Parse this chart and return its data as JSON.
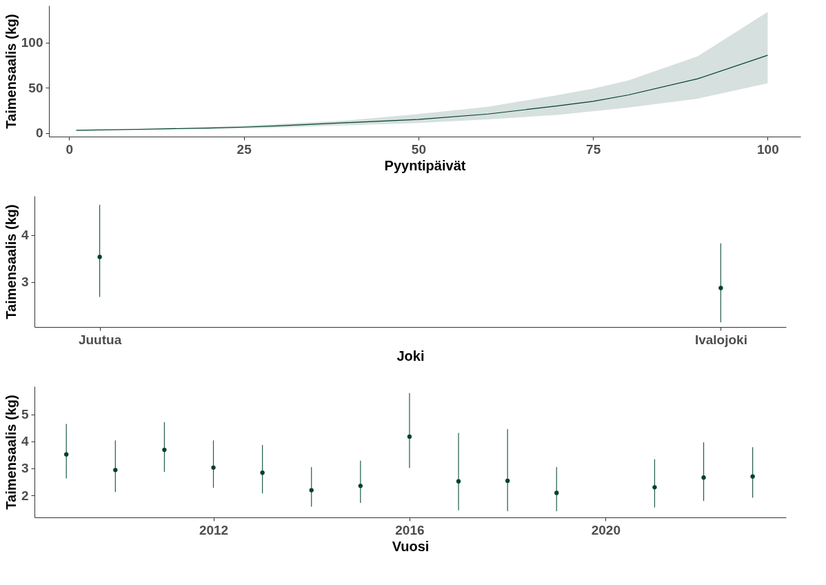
{
  "chart_data": [
    {
      "type": "line",
      "xlabel": "Pyyntipäivät",
      "ylabel": "Taimensaalis (kg)",
      "x": [
        1,
        10,
        20,
        25,
        30,
        40,
        50,
        60,
        70,
        75,
        80,
        90,
        100
      ],
      "xlim": [
        -2.9,
        104.7
      ],
      "xticks": [
        0,
        25,
        50,
        75,
        100
      ],
      "ylim": [
        -4,
        141
      ],
      "yticks": [
        0,
        50,
        100
      ],
      "series": [
        {
          "color": "#00402f",
          "values": [
            3,
            4,
            5.5,
            6.5,
            8,
            11.5,
            15,
            21,
            30,
            35,
            42,
            60,
            86
          ],
          "lower": [
            2.5,
            3.3,
            4.5,
            5,
            6,
            8.5,
            11,
            15,
            20,
            24,
            28,
            38,
            55
          ],
          "upper": [
            3.5,
            4.8,
            6.5,
            8,
            10,
            14,
            21,
            29,
            42,
            49,
            58,
            85,
            134
          ]
        }
      ]
    },
    {
      "type": "scatter",
      "xlabel": "Joki",
      "ylabel": "Taimensaalis (kg)",
      "categories": [
        "Juutua",
        "Ivalojoki"
      ],
      "ylim": [
        2.04,
        4.83
      ],
      "yticks": [
        3,
        4
      ],
      "marker": "circle",
      "series": [
        {
          "color": "#00402f",
          "values": [
            3.53,
            2.87
          ],
          "errors": [
            [
              2.68,
              4.64
            ],
            [
              2.14,
              3.82
            ]
          ]
        }
      ]
    },
    {
      "type": "scatter",
      "xlabel": "Vuosi",
      "ylabel": "Taimensaalis (kg)",
      "x": [
        2009,
        2010,
        2011,
        2012,
        2013,
        2014,
        2015,
        2016,
        2017,
        2018,
        2019,
        2021,
        2022,
        2023
      ],
      "xlim": [
        2008.35,
        2023.68
      ],
      "xticks": [
        2012,
        2016,
        2020
      ],
      "ylim": [
        1.18,
        6.05
      ],
      "yticks": [
        2,
        3,
        4,
        5
      ],
      "marker": "circle",
      "series": [
        {
          "color": "#00402f",
          "values": [
            3.52,
            2.94,
            3.69,
            3.03,
            2.84,
            2.19,
            2.35,
            4.18,
            2.52,
            2.54,
            2.09,
            2.3,
            2.66,
            2.7
          ],
          "errors": [
            [
              2.63,
              4.65
            ],
            [
              2.12,
              4.04
            ],
            [
              2.87,
              4.72
            ],
            [
              2.28,
              4.04
            ],
            [
              2.07,
              3.87
            ],
            [
              1.58,
              3.05
            ],
            [
              1.72,
              3.29
            ],
            [
              3.01,
              5.8
            ],
            [
              1.44,
              4.32
            ],
            [
              1.41,
              4.46
            ],
            [
              1.41,
              3.05
            ],
            [
              1.55,
              3.34
            ],
            [
              1.79,
              3.97
            ],
            [
              1.91,
              3.79
            ]
          ]
        }
      ]
    }
  ]
}
